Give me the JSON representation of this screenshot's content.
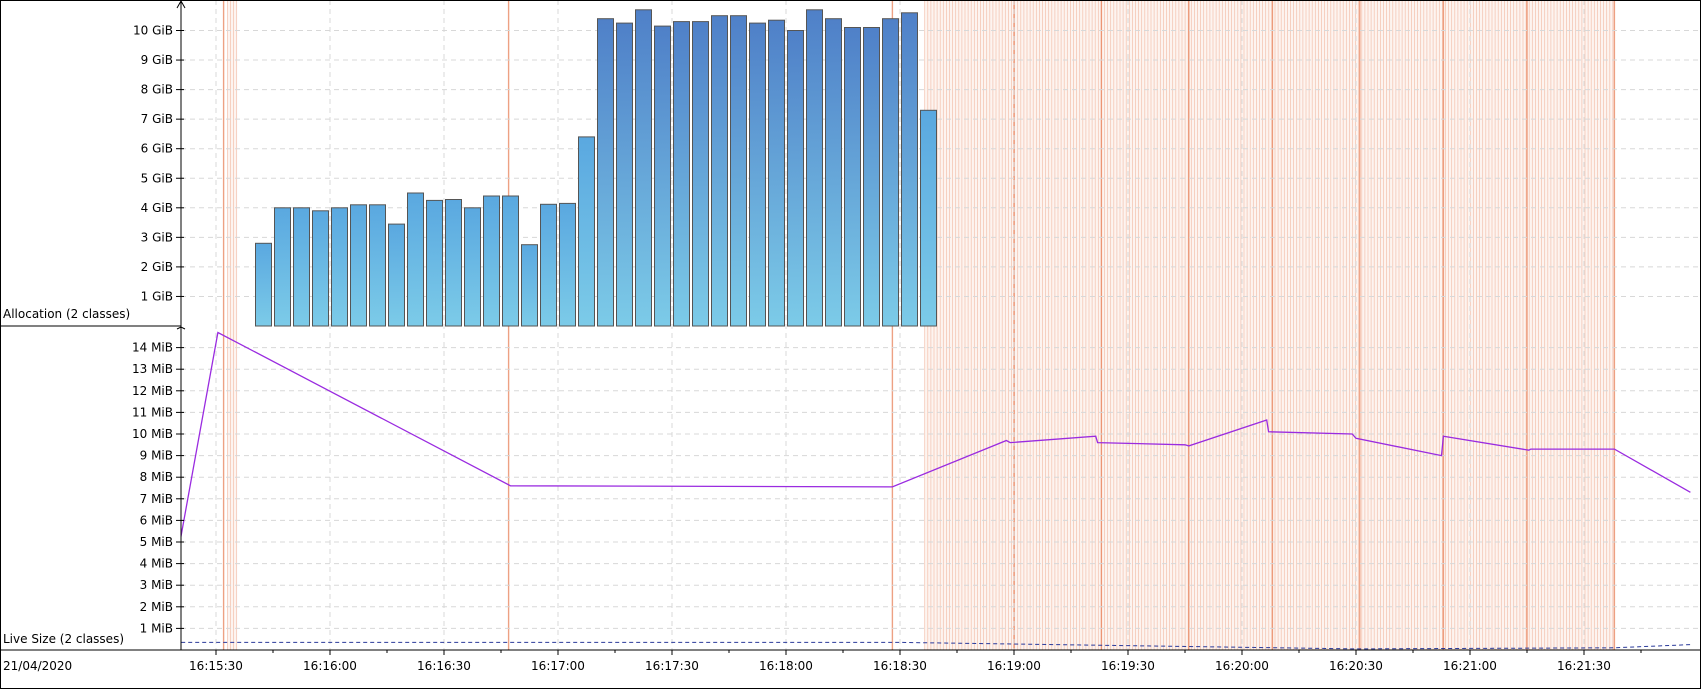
{
  "date_label": "21/04/2020",
  "chart_data": [
    {
      "type": "bar",
      "name_label": "Allocation (2 classes)",
      "y_unit": "GiB",
      "ylim": [
        0,
        11
      ],
      "y_ticks": [
        1,
        2,
        3,
        4,
        5,
        6,
        7,
        8,
        9,
        10
      ],
      "y_tick_labels": [
        "1 GiB",
        "2 GiB",
        "3 GiB",
        "4 GiB",
        "5 GiB",
        "6 GiB",
        "7 GiB",
        "8 GiB",
        "9 GiB",
        "10 GiB"
      ],
      "grid": true,
      "bar_width_s": 5,
      "bars": [
        {
          "t": "16:15:40",
          "v": 2.8
        },
        {
          "t": "16:15:45",
          "v": 4.0
        },
        {
          "t": "16:15:50",
          "v": 4.0
        },
        {
          "t": "16:15:55",
          "v": 3.9
        },
        {
          "t": "16:16:00",
          "v": 4.0
        },
        {
          "t": "16:16:05",
          "v": 4.1
        },
        {
          "t": "16:16:10",
          "v": 4.1
        },
        {
          "t": "16:16:15",
          "v": 3.45
        },
        {
          "t": "16:16:20",
          "v": 4.5
        },
        {
          "t": "16:16:25",
          "v": 4.25
        },
        {
          "t": "16:16:30",
          "v": 4.28
        },
        {
          "t": "16:16:35",
          "v": 4.0
        },
        {
          "t": "16:16:40",
          "v": 4.4
        },
        {
          "t": "16:16:45",
          "v": 4.4
        },
        {
          "t": "16:16:50",
          "v": 2.75
        },
        {
          "t": "16:16:55",
          "v": 4.12
        },
        {
          "t": "16:17:00",
          "v": 4.15
        },
        {
          "t": "16:17:05",
          "v": 6.4
        },
        {
          "t": "16:17:10",
          "v": 10.4
        },
        {
          "t": "16:17:15",
          "v": 10.25
        },
        {
          "t": "16:17:20",
          "v": 10.7
        },
        {
          "t": "16:17:25",
          "v": 10.15
        },
        {
          "t": "16:17:30",
          "v": 10.3
        },
        {
          "t": "16:17:35",
          "v": 10.3
        },
        {
          "t": "16:17:40",
          "v": 10.5
        },
        {
          "t": "16:17:45",
          "v": 10.5
        },
        {
          "t": "16:17:50",
          "v": 10.25
        },
        {
          "t": "16:17:55",
          "v": 10.35
        },
        {
          "t": "16:18:00",
          "v": 10.0
        },
        {
          "t": "16:18:05",
          "v": 10.7
        },
        {
          "t": "16:18:10",
          "v": 10.4
        },
        {
          "t": "16:18:15",
          "v": 10.1
        },
        {
          "t": "16:18:20",
          "v": 10.1
        },
        {
          "t": "16:18:25",
          "v": 10.4
        },
        {
          "t": "16:18:30",
          "v": 10.6
        },
        {
          "t": "16:18:35",
          "v": 7.3
        }
      ]
    },
    {
      "type": "line",
      "name_label": "Live Size (2 classes)",
      "y_unit": "MiB",
      "ylim": [
        0,
        14.75
      ],
      "y_ticks": [
        1,
        2,
        3,
        4,
        5,
        6,
        7,
        8,
        9,
        10,
        11,
        12,
        13,
        14
      ],
      "y_tick_labels": [
        "1 MiB",
        "2 MiB",
        "3 MiB",
        "4 MiB",
        "5 MiB",
        "6 MiB",
        "7 MiB",
        "8 MiB",
        "9 MiB",
        "10 MiB",
        "11 MiB",
        "12 MiB",
        "13 MiB",
        "14 MiB"
      ],
      "grid": true,
      "series": [
        {
          "color": "#9a2be0",
          "points": [
            [
              "16:15:19",
              0.3
            ],
            [
              "16:15:20",
              4.5
            ],
            [
              "16:15:30.5",
              14.7
            ],
            [
              "16:16:47.5",
              7.6
            ],
            [
              "16:18:28",
              7.55
            ],
            [
              "16:18:58",
              9.7
            ],
            [
              "16:18:59",
              9.6
            ],
            [
              "16:19:21.5",
              9.9
            ],
            [
              "16:19:22",
              9.6
            ],
            [
              "16:19:45",
              9.5
            ],
            [
              "16:19:46",
              9.45
            ],
            [
              "16:20:06.5",
              10.65
            ],
            [
              "16:20:07",
              10.1
            ],
            [
              "16:20:29",
              10.0
            ],
            [
              "16:20:30",
              9.8
            ],
            [
              "16:20:52.5",
              9.0
            ],
            [
              "16:20:53",
              9.9
            ],
            [
              "16:21:15.5",
              9.25
            ],
            [
              "16:21:16",
              9.3
            ],
            [
              "16:21:38",
              9.3
            ],
            [
              "16:21:58",
              7.3
            ]
          ]
        },
        {
          "color": "#2a3a9a",
          "dashed": true,
          "points": [
            [
              "16:15:19",
              0.35
            ],
            [
              "16:18:30",
              0.35
            ],
            [
              "16:20:30",
              0.05
            ],
            [
              "16:21:38",
              0.1
            ],
            [
              "16:21:58",
              0.25
            ]
          ]
        }
      ]
    }
  ],
  "x_axis": {
    "tick_labels": [
      "16:15:30",
      "16:16:00",
      "16:16:30",
      "16:17:00",
      "16:17:30",
      "16:18:00",
      "16:18:30",
      "16:19:00",
      "16:19:30",
      "16:20:00",
      "16:20:30",
      "16:21:00",
      "16:21:30"
    ]
  },
  "gc_markers": {
    "color": "#e8825a",
    "ranges": [
      [
        "16:15:33",
        "16:15:35.5"
      ],
      [
        "16:18:36.5",
        "16:21:38"
      ]
    ],
    "strong": [
      "16:15:32",
      "16:16:47",
      "16:18:28",
      "16:19:00",
      "16:19:23",
      "16:19:46",
      "16:20:08",
      "16:20:31",
      "16:20:53",
      "16:21:15",
      "16:21:38"
    ]
  },
  "colors": {
    "bar_top": "#4f80c8",
    "bar_bottom": "#7ccbe8",
    "bar_low_top": "#5aa8e0",
    "bar_border": "#555555",
    "grid": "#d8d8d8"
  }
}
